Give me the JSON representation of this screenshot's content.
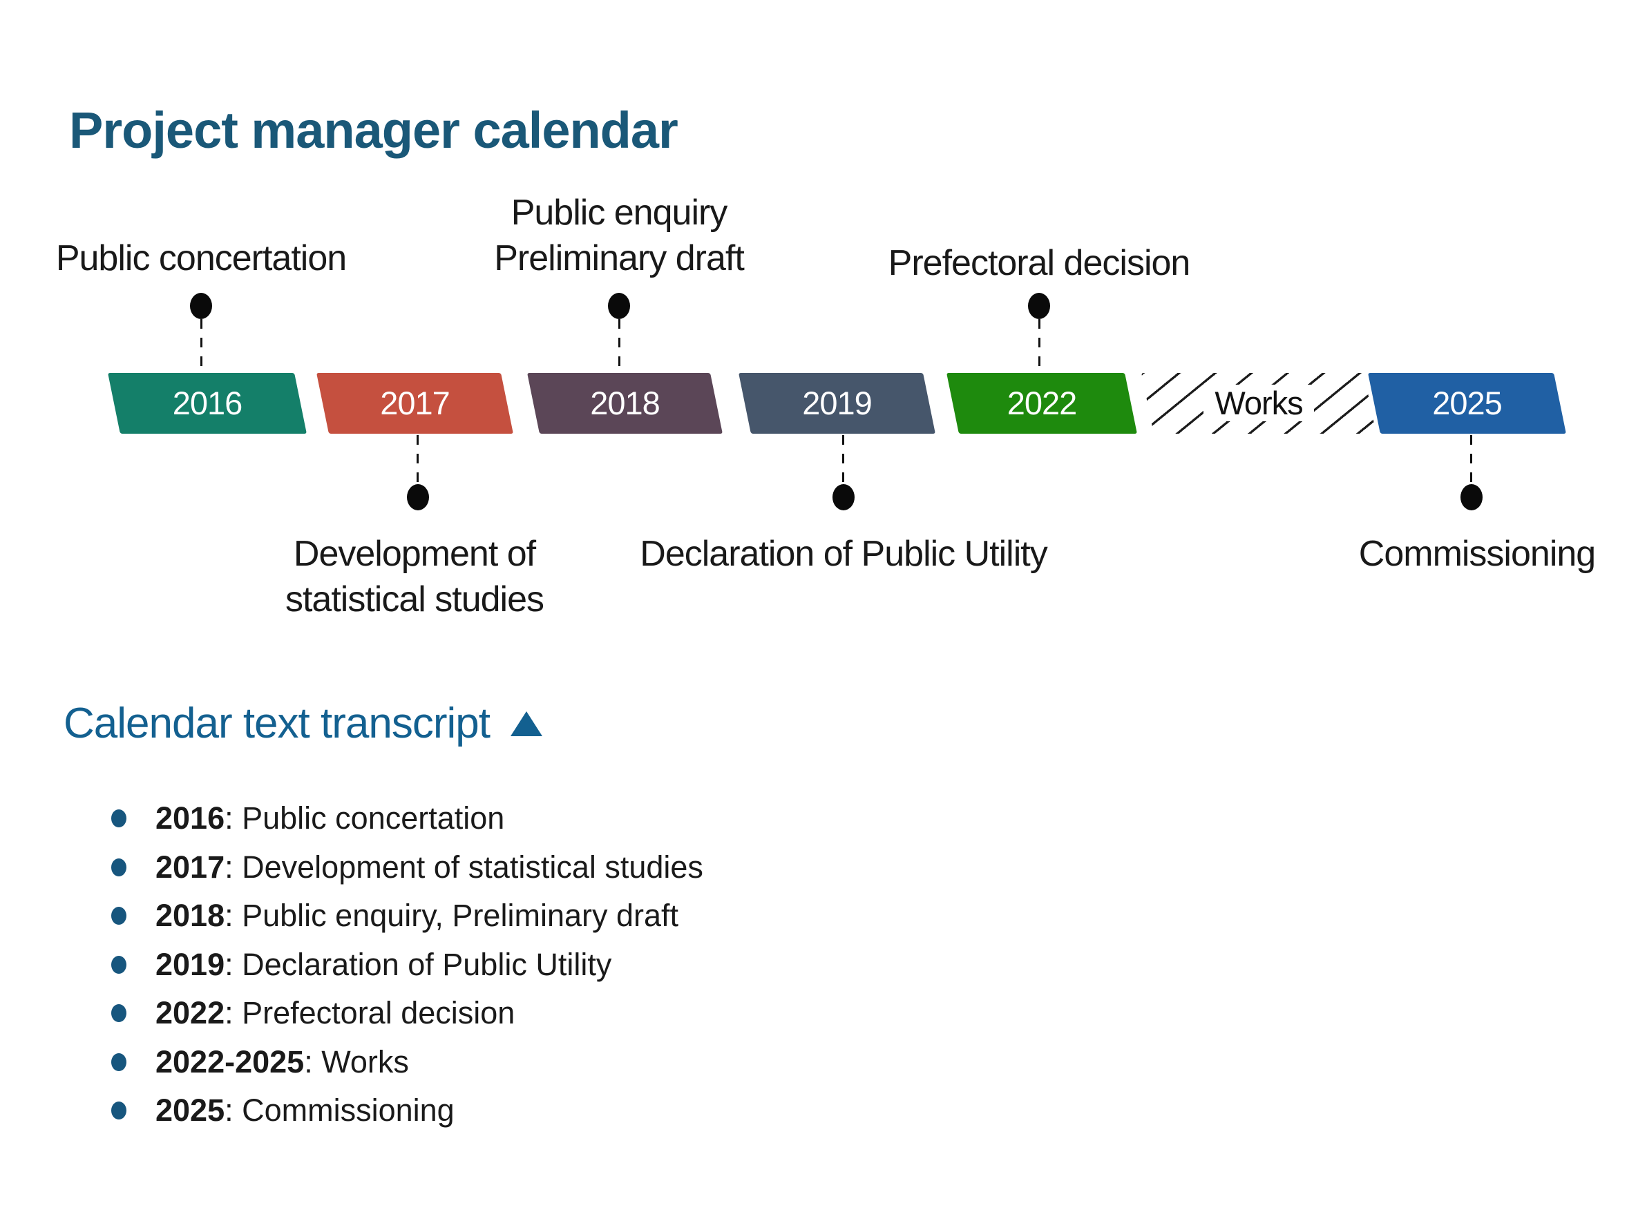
{
  "title": "Project manager calendar",
  "timeline": {
    "segments": [
      {
        "label": "2016",
        "color": "#147F69"
      },
      {
        "label": "2017",
        "color": "#C5503F"
      },
      {
        "label": "2018",
        "color": "#5B4657"
      },
      {
        "label": "2019",
        "color": "#46566B"
      },
      {
        "label": "2022",
        "color": "#1E8A0D"
      },
      {
        "label": "Works",
        "color": "hatched-white"
      },
      {
        "label": "2025",
        "color": "#2060A4"
      }
    ],
    "callouts_top": [
      {
        "line1": "Public concertation",
        "target": "2016"
      },
      {
        "line1": "Public enquiry",
        "line2": "Preliminary draft",
        "target": "2018"
      },
      {
        "line1": "Prefectoral decision",
        "target": "2022"
      }
    ],
    "callouts_bottom": [
      {
        "line1": "Development of",
        "line2": "statistical studies",
        "target": "2017"
      },
      {
        "line1": "Declaration of Public Utility",
        "target": "2019"
      },
      {
        "line1": "Commissioning",
        "target": "2025"
      }
    ]
  },
  "transcript": {
    "heading": "Calendar text transcript",
    "toggle_icon": "up-triangle",
    "items": [
      {
        "year": "2016",
        "rest": ": Public concertation"
      },
      {
        "year": "2017",
        "rest": ": Development of statistical studies"
      },
      {
        "year": "2018",
        "rest": ": Public enquiry, Preliminary draft"
      },
      {
        "year": "2019",
        "rest": ": Declaration of Public Utility"
      },
      {
        "year": "2022",
        "rest": ": Prefectoral decision"
      },
      {
        "year": "2022-2025",
        "rest": ": Works"
      },
      {
        "year": "2025",
        "rest": ": Commissioning"
      }
    ]
  },
  "colors": {
    "title_blue": "#1A5878",
    "heading_blue": "#136090",
    "bullet_blue": "#17567E",
    "callout_text": "#191919",
    "dot_black": "#0A0A0A"
  }
}
